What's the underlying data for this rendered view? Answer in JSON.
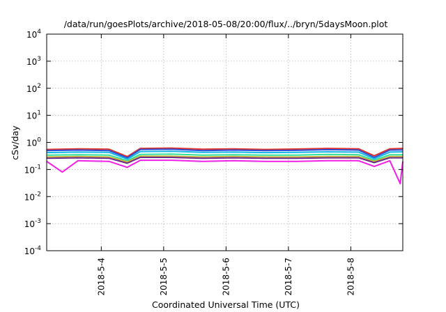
{
  "chart_data": {
    "type": "line",
    "title": "/data/run/goesPlots/archive/2018-05-08/20:00/flux/../bryn/5daysMoon.plot",
    "xlabel": "Coordinated Universal Time (UTC)",
    "ylabel": "cSv/day",
    "yscale": "log",
    "ylim": [
      0.0001,
      10000
    ],
    "y_ticks": [
      {
        "base": "10",
        "exp": "-4",
        "value": 0.0001
      },
      {
        "base": "10",
        "exp": "-3",
        "value": 0.001
      },
      {
        "base": "10",
        "exp": "-2",
        "value": 0.01
      },
      {
        "base": "10",
        "exp": "-1",
        "value": 0.1
      },
      {
        "base": "10",
        "exp": "0",
        "value": 1
      },
      {
        "base": "10",
        "exp": "1",
        "value": 10
      },
      {
        "base": "10",
        "exp": "2",
        "value": 100
      },
      {
        "base": "10",
        "exp": "3",
        "value": 1000
      },
      {
        "base": "10",
        "exp": "4",
        "value": 10000
      }
    ],
    "xlim": [
      "2018-05-03 03:00",
      "2018-05-08 20:00"
    ],
    "x_ticks": [
      "2018-5-4",
      "2018-5-5",
      "2018-5-6",
      "2018-5-7",
      "2018-5-8"
    ],
    "grid": true,
    "legend": "none",
    "series": [
      {
        "color": "#e0302a",
        "x": [
          "2018-05-03 03:00",
          "2018-05-03 15:00",
          "2018-05-04 03:00",
          "2018-05-04 10:00",
          "2018-05-04 15:00",
          "2018-05-05 03:00",
          "2018-05-05 15:00",
          "2018-05-06 03:00",
          "2018-05-06 15:00",
          "2018-05-07 03:00",
          "2018-05-07 15:00",
          "2018-05-08 03:00",
          "2018-05-08 09:00",
          "2018-05-08 15:00",
          "2018-05-08 20:00"
        ],
        "y": [
          0.55,
          0.58,
          0.56,
          0.3,
          0.6,
          0.62,
          0.56,
          0.58,
          0.55,
          0.57,
          0.6,
          0.58,
          0.32,
          0.58,
          0.6
        ]
      },
      {
        "color": "#2b4fd6",
        "x": [
          "2018-05-03 03:00",
          "2018-05-03 15:00",
          "2018-05-04 03:00",
          "2018-05-04 10:00",
          "2018-05-04 15:00",
          "2018-05-05 03:00",
          "2018-05-05 15:00",
          "2018-05-06 03:00",
          "2018-05-06 15:00",
          "2018-05-07 03:00",
          "2018-05-07 15:00",
          "2018-05-08 03:00",
          "2018-05-08 09:00",
          "2018-05-08 15:00",
          "2018-05-08 20:00"
        ],
        "y": [
          0.5,
          0.52,
          0.5,
          0.27,
          0.55,
          0.56,
          0.5,
          0.52,
          0.5,
          0.51,
          0.54,
          0.52,
          0.28,
          0.52,
          0.53
        ]
      },
      {
        "color": "#14b4e6",
        "x": [
          "2018-05-03 03:00",
          "2018-05-03 15:00",
          "2018-05-04 03:00",
          "2018-05-04 10:00",
          "2018-05-04 15:00",
          "2018-05-05 03:00",
          "2018-05-05 15:00",
          "2018-05-06 03:00",
          "2018-05-06 15:00",
          "2018-05-07 03:00",
          "2018-05-07 15:00",
          "2018-05-08 03:00",
          "2018-05-08 09:00",
          "2018-05-08 15:00",
          "2018-05-08 20:00"
        ],
        "y": [
          0.42,
          0.44,
          0.43,
          0.24,
          0.46,
          0.47,
          0.43,
          0.44,
          0.42,
          0.43,
          0.45,
          0.44,
          0.25,
          0.44,
          0.45
        ]
      },
      {
        "color": "#2fe09a",
        "x": [
          "2018-05-03 03:00",
          "2018-05-03 15:00",
          "2018-05-04 03:00",
          "2018-05-04 10:00",
          "2018-05-04 15:00",
          "2018-05-05 03:00",
          "2018-05-05 15:00",
          "2018-05-06 03:00",
          "2018-05-06 15:00",
          "2018-05-07 03:00",
          "2018-05-07 15:00",
          "2018-05-08 03:00",
          "2018-05-08 09:00",
          "2018-05-08 15:00",
          "2018-05-08 20:00"
        ],
        "y": [
          0.34,
          0.35,
          0.34,
          0.21,
          0.36,
          0.37,
          0.34,
          0.35,
          0.34,
          0.34,
          0.36,
          0.35,
          0.22,
          0.35,
          0.35
        ]
      },
      {
        "color": "#c8b23a",
        "x": [
          "2018-05-03 03:00",
          "2018-05-03 15:00",
          "2018-05-04 03:00",
          "2018-05-04 10:00",
          "2018-05-04 15:00",
          "2018-05-05 03:00",
          "2018-05-05 15:00",
          "2018-05-06 03:00",
          "2018-05-06 15:00",
          "2018-05-07 03:00",
          "2018-05-07 15:00",
          "2018-05-08 03:00",
          "2018-05-08 09:00",
          "2018-05-08 15:00",
          "2018-05-08 20:00"
        ],
        "y": [
          0.29,
          0.3,
          0.29,
          0.19,
          0.31,
          0.31,
          0.29,
          0.3,
          0.29,
          0.29,
          0.3,
          0.3,
          0.2,
          0.3,
          0.3
        ]
      },
      {
        "color": "#6a2a8a",
        "x": [
          "2018-05-03 03:00",
          "2018-05-03 15:00",
          "2018-05-04 03:00",
          "2018-05-04 10:00",
          "2018-05-04 15:00",
          "2018-05-05 03:00",
          "2018-05-05 15:00",
          "2018-05-06 03:00",
          "2018-05-06 15:00",
          "2018-05-07 03:00",
          "2018-05-07 15:00",
          "2018-05-08 03:00",
          "2018-05-08 09:00",
          "2018-05-08 15:00",
          "2018-05-08 20:00"
        ],
        "y": [
          0.26,
          0.27,
          0.26,
          0.17,
          0.28,
          0.28,
          0.26,
          0.27,
          0.26,
          0.26,
          0.27,
          0.27,
          0.18,
          0.27,
          0.27
        ]
      },
      {
        "color": "#f01ee6",
        "x": [
          "2018-05-03 03:00",
          "2018-05-03 09:00",
          "2018-05-03 15:00",
          "2018-05-04 03:00",
          "2018-05-04 10:00",
          "2018-05-04 15:00",
          "2018-05-05 03:00",
          "2018-05-05 15:00",
          "2018-05-06 03:00",
          "2018-05-06 15:00",
          "2018-05-07 03:00",
          "2018-05-07 15:00",
          "2018-05-08 03:00",
          "2018-05-08 09:00",
          "2018-05-08 15:00",
          "2018-05-08 19:00",
          "2018-05-08 20:00"
        ],
        "y": [
          0.2,
          0.08,
          0.21,
          0.2,
          0.12,
          0.22,
          0.22,
          0.2,
          0.21,
          0.2,
          0.2,
          0.21,
          0.21,
          0.13,
          0.21,
          0.03,
          0.2
        ]
      }
    ]
  }
}
